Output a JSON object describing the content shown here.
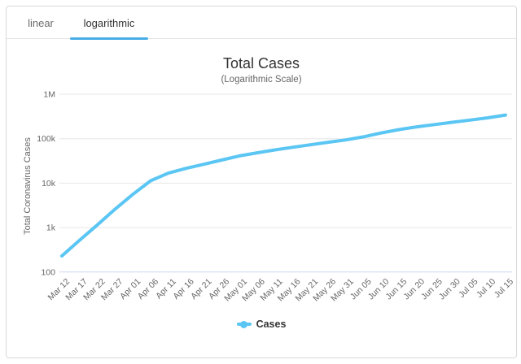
{
  "tab_bar": {
    "tabs": [
      {
        "label": "linear",
        "active": false
      },
      {
        "label": "logarithmic",
        "active": true
      }
    ]
  },
  "chart": {
    "title": "Total Cases",
    "subtitle": "(Logarithmic Scale)",
    "y_axis_title": "Total Coronavirus Cases",
    "legend": {
      "label": "Cases",
      "marker": "line-with-dot-marker"
    }
  },
  "colors": {
    "accent": "#47ADE6",
    "series_line": "#5BC6F3",
    "gridline": "#e6e6e6",
    "axis_line": "#ccd6eb",
    "tick_text": "#666666",
    "title_text": "#333333",
    "subtitle_text": "#666666",
    "card_border": "#d9d9d9"
  },
  "chart_data": {
    "type": "line",
    "title": "Total Cases",
    "subtitle": "(Logarithmic Scale)",
    "xlabel": "",
    "ylabel": "Total Coronavirus Cases",
    "y_scale": "log",
    "ylim": [
      100,
      1000000
    ],
    "y_ticks": [
      {
        "label": "100",
        "value": 100
      },
      {
        "label": "1k",
        "value": 1000
      },
      {
        "label": "10k",
        "value": 10000
      },
      {
        "label": "100k",
        "value": 100000
      },
      {
        "label": "1M",
        "value": 1000000
      }
    ],
    "grid": "horizontal",
    "legend_position": "bottom",
    "categories": [
      "Mar 12",
      "Mar 17",
      "Mar 22",
      "Mar 27",
      "Apr 01",
      "Apr 06",
      "Apr 11",
      "Apr 16",
      "Apr 21",
      "Apr 26",
      "May 01",
      "May 06",
      "May 11",
      "May 16",
      "May 21",
      "May 26",
      "May 31",
      "Jun 05",
      "Jun 10",
      "Jun 15",
      "Jun 20",
      "Jun 25",
      "Jun 30",
      "Jul 05",
      "Jul 10",
      "Jul 15"
    ],
    "series": [
      {
        "name": "Cases",
        "color": "#5BC6F3",
        "values": [
          230,
          520,
          1150,
          2600,
          5600,
          11300,
          16800,
          21500,
          26500,
          33000,
          41000,
          48000,
          56000,
          64000,
          73000,
          83000,
          94000,
          110000,
          135000,
          160000,
          185000,
          208000,
          234000,
          262000,
          295000,
          340000
        ]
      }
    ]
  }
}
